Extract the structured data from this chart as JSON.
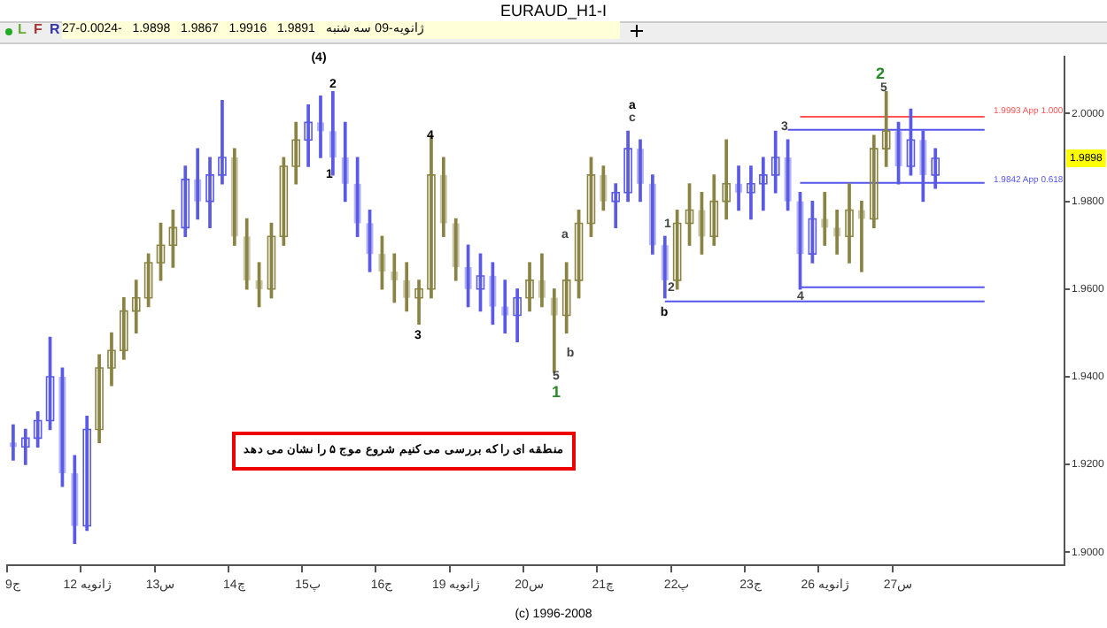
{
  "chart_data": {
    "type": "candlestick",
    "title": "EURAUD_H1-I",
    "subtitle": "27-ژانویه-09 سه شنبه   1.9891   1.9916   1.9867   1.9898   -0.0024",
    "categories": [
      "9ج",
      null,
      null,
      null,
      null,
      null,
      "12 ژانویه",
      null,
      null,
      null,
      null,
      null,
      "13س",
      null,
      null,
      null,
      null,
      null,
      "14چ",
      null,
      null,
      null,
      null,
      null,
      "15پ",
      null,
      null,
      null,
      null,
      null,
      "16ج",
      null,
      null,
      null,
      null,
      null,
      "19 ژانویه",
      null,
      null,
      null,
      null,
      null,
      "20س",
      null,
      null,
      null,
      null,
      null,
      "21چ",
      null,
      null,
      null,
      null,
      null,
      "22پ",
      null,
      null,
      null,
      null,
      null,
      "23ج",
      null,
      null,
      null,
      null,
      null,
      "26 ژانویه",
      null,
      null,
      null,
      null,
      null,
      "27س",
      null,
      null,
      null,
      null,
      null,
      null,
      null,
      null,
      null,
      null,
      null,
      null,
      null
    ],
    "series": [
      {
        "ohlc": [
          [
            1.925,
            1.929,
            1.921,
            1.924
          ],
          [
            1.924,
            1.928,
            1.92,
            1.926
          ],
          [
            1.926,
            1.932,
            1.924,
            1.93
          ],
          [
            1.93,
            1.949,
            1.928,
            1.94
          ],
          [
            1.94,
            1.942,
            1.915,
            1.918
          ],
          [
            1.918,
            1.922,
            1.902,
            1.906
          ],
          [
            1.906,
            1.931,
            1.905,
            1.928
          ],
          [
            1.928,
            1.945,
            1.925,
            1.942
          ],
          [
            1.942,
            1.95,
            1.938,
            1.946
          ],
          [
            1.946,
            1.958,
            1.944,
            1.955
          ],
          [
            1.955,
            1.962,
            1.95,
            1.958
          ],
          [
            1.958,
            1.968,
            1.956,
            1.966
          ],
          [
            1.966,
            1.975,
            1.962,
            1.97
          ],
          [
            1.97,
            1.978,
            1.965,
            1.974
          ],
          [
            1.974,
            1.988,
            1.972,
            1.985
          ],
          [
            1.985,
            1.992,
            1.976,
            1.98
          ],
          [
            1.98,
            1.99,
            1.974,
            1.986
          ],
          [
            1.986,
            2.003,
            1.984,
            1.99
          ],
          [
            1.99,
            1.992,
            1.97,
            1.972
          ],
          [
            1.972,
            1.976,
            1.96,
            1.962
          ],
          [
            1.962,
            1.966,
            1.956,
            1.96
          ],
          [
            1.96,
            1.975,
            1.958,
            1.972
          ],
          [
            1.972,
            1.99,
            1.97,
            1.988
          ],
          [
            1.988,
            1.998,
            1.984,
            1.994
          ],
          [
            1.994,
            2.002,
            1.988,
            1.998
          ],
          [
            1.998,
            2.004,
            1.99,
            1.996
          ],
          [
            1.996,
            2.005,
            1.986,
            1.99
          ],
          [
            1.99,
            1.998,
            1.98,
            1.984
          ],
          [
            1.984,
            1.99,
            1.972,
            1.975
          ],
          [
            1.975,
            1.978,
            1.964,
            1.968
          ],
          [
            1.968,
            1.972,
            1.96,
            1.964
          ],
          [
            1.964,
            1.968,
            1.957,
            1.962
          ],
          [
            1.962,
            1.966,
            1.955,
            1.958
          ],
          [
            1.958,
            1.962,
            1.952,
            1.96
          ],
          [
            1.96,
            1.995,
            1.958,
            1.986
          ],
          [
            1.986,
            1.99,
            1.972,
            1.975
          ],
          [
            1.975,
            1.976,
            1.962,
            1.965
          ],
          [
            1.965,
            1.97,
            1.956,
            1.96
          ],
          [
            1.96,
            1.968,
            1.955,
            1.963
          ],
          [
            1.963,
            1.966,
            1.952,
            1.956
          ],
          [
            1.956,
            1.962,
            1.95,
            1.954
          ],
          [
            1.954,
            1.96,
            1.948,
            1.958
          ],
          [
            1.958,
            1.966,
            1.955,
            1.962
          ],
          [
            1.962,
            1.968,
            1.956,
            1.958
          ],
          [
            1.958,
            1.96,
            1.941,
            1.954
          ],
          [
            1.954,
            1.966,
            1.95,
            1.962
          ],
          [
            1.962,
            1.978,
            1.958,
            1.975
          ],
          [
            1.975,
            1.99,
            1.972,
            1.986
          ],
          [
            1.986,
            1.988,
            1.978,
            1.98
          ],
          [
            1.98,
            1.984,
            1.974,
            1.982
          ],
          [
            1.982,
            1.996,
            1.98,
            1.992
          ],
          [
            1.992,
            1.994,
            1.98,
            1.984
          ],
          [
            1.984,
            1.986,
            1.968,
            1.97
          ],
          [
            1.97,
            1.972,
            1.958,
            1.962
          ],
          [
            1.962,
            1.978,
            1.96,
            1.975
          ],
          [
            1.975,
            1.984,
            1.97,
            1.978
          ],
          [
            1.978,
            1.982,
            1.968,
            1.972
          ],
          [
            1.972,
            1.986,
            1.97,
            1.98
          ],
          [
            1.98,
            1.994,
            1.976,
            1.984
          ],
          [
            1.984,
            1.988,
            1.978,
            1.982
          ],
          [
            1.982,
            1.988,
            1.976,
            1.984
          ],
          [
            1.984,
            1.99,
            1.978,
            1.986
          ],
          [
            1.986,
            1.996,
            1.982,
            1.99
          ],
          [
            1.99,
            1.994,
            1.978,
            1.98
          ],
          [
            1.98,
            1.982,
            1.96,
            1.968
          ],
          [
            1.968,
            1.98,
            1.966,
            1.976
          ],
          [
            1.976,
            1.982,
            1.97,
            1.974
          ],
          [
            1.974,
            1.978,
            1.968,
            1.972
          ],
          [
            1.972,
            1.984,
            1.966,
            1.978
          ],
          [
            1.978,
            1.98,
            1.964,
            1.976
          ],
          [
            1.976,
            1.995,
            1.974,
            1.992
          ],
          [
            1.992,
            2.005,
            1.988,
            1.996
          ],
          [
            1.996,
            1.998,
            1.984,
            1.988
          ],
          [
            1.988,
            2.001,
            1.986,
            1.994
          ],
          [
            1.994,
            1.996,
            1.98,
            1.986
          ],
          [
            1.986,
            1.992,
            1.983,
            1.9898
          ],
          null,
          null,
          null,
          null,
          null,
          null,
          null,
          null,
          null,
          null
        ],
        "colors": [
          "#5a5ae6",
          "#5a5ae6",
          "#5a5ae6",
          "#5a5ae6",
          "#5a5ae6",
          "#5a5ae6",
          "#5a5ae6",
          "#8a8444",
          "#8a8444",
          "#8a8444",
          "#8a8444",
          "#8a8444",
          "#8a8444",
          "#8a8444",
          "#5a5ae6",
          "#5a5ae6",
          "#5a5ae6",
          "#5a5ae6",
          "#8a8444",
          "#8a8444",
          "#8a8444",
          "#8a8444",
          "#8a8444",
          "#8a8444",
          "#5a5ae6",
          "#5a5ae6",
          "#5a5ae6",
          "#5a5ae6",
          "#5a5ae6",
          "#5a5ae6",
          "#8a8444",
          "#8a8444",
          "#8a8444",
          "#8a8444",
          "#8a8444",
          "#8a8444",
          "#8a8444",
          "#5a5ae6",
          "#5a5ae6",
          "#5a5ae6",
          "#5a5ae6",
          "#5a5ae6",
          "#8a8444",
          "#8a8444",
          "#8a8444",
          "#8a8444",
          "#8a8444",
          "#8a8444",
          "#8a8444",
          "#5a5ae6",
          "#5a5ae6",
          "#5a5ae6",
          "#5a5ae6",
          "#5a5ae6",
          "#8a8444",
          "#8a8444",
          "#8a8444",
          "#8a8444",
          "#8a8444",
          "#5a5ae6",
          "#5a5ae6",
          "#5a5ae6",
          "#5a5ae6",
          "#5a5ae6",
          "#5a5ae6",
          "#5a5ae6",
          "#8a8444",
          "#8a8444",
          "#8a8444",
          "#8a8444",
          "#8a8444",
          "#8a8444",
          "#5a5ae6",
          "#5a5ae6",
          "#5a5ae6",
          "#5a5ae6",
          null,
          null,
          null,
          null,
          null,
          null,
          null,
          null,
          null,
          null
        ]
      },
      {
        "type": "line",
        "color": "#ff5555",
        "values": [
          null,
          null,
          null,
          null,
          null,
          null,
          null,
          null,
          null,
          null,
          null,
          null,
          null,
          null,
          null,
          null,
          null,
          null,
          null,
          null,
          null,
          null,
          null,
          null,
          null,
          null,
          null,
          null,
          null,
          null,
          null,
          null,
          null,
          null,
          null,
          null,
          null,
          null,
          null,
          null,
          null,
          null,
          null,
          null,
          null,
          null,
          null,
          null,
          null,
          null,
          null,
          null,
          null,
          null,
          null,
          null,
          null,
          null,
          null,
          null,
          null,
          null,
          null,
          null,
          1.9993,
          1.9993,
          1.9993,
          1.9993,
          1.9993,
          1.9993,
          1.9993,
          1.9993,
          1.9993,
          1.9993,
          1.9993,
          1.9993,
          1.9993,
          1.9993,
          1.9993,
          1.9993,
          null,
          null,
          null,
          null,
          null,
          null
        ]
      },
      {
        "type": "line",
        "color": "#5555ee",
        "values": [
          null,
          null,
          null,
          null,
          null,
          null,
          null,
          null,
          null,
          null,
          null,
          null,
          null,
          null,
          null,
          null,
          null,
          null,
          null,
          null,
          null,
          null,
          null,
          null,
          null,
          null,
          null,
          null,
          null,
          null,
          null,
          null,
          null,
          null,
          null,
          null,
          null,
          null,
          null,
          null,
          null,
          null,
          null,
          null,
          null,
          null,
          null,
          null,
          null,
          null,
          null,
          null,
          null,
          null,
          null,
          null,
          null,
          null,
          null,
          null,
          null,
          null,
          null,
          1.9963,
          1.9963,
          1.9963,
          1.9963,
          1.9963,
          1.9963,
          1.9963,
          1.9963,
          1.9963,
          1.9963,
          1.9963,
          1.9963,
          1.9963,
          1.9963,
          1.9963,
          1.9963,
          1.9963,
          null,
          null,
          null,
          null,
          null,
          null
        ]
      },
      {
        "type": "line",
        "color": "#5555ee",
        "values": [
          null,
          null,
          null,
          null,
          null,
          null,
          null,
          null,
          null,
          null,
          null,
          null,
          null,
          null,
          null,
          null,
          null,
          null,
          null,
          null,
          null,
          null,
          null,
          null,
          null,
          null,
          null,
          null,
          null,
          null,
          null,
          null,
          null,
          null,
          null,
          null,
          null,
          null,
          null,
          null,
          null,
          null,
          null,
          null,
          null,
          null,
          null,
          null,
          null,
          null,
          null,
          null,
          null,
          null,
          null,
          null,
          null,
          null,
          null,
          null,
          null,
          null,
          null,
          null,
          1.9842,
          1.9842,
          1.9842,
          1.9842,
          1.9842,
          1.9842,
          1.9842,
          1.9842,
          1.9842,
          1.9842,
          1.9842,
          1.9842,
          1.9842,
          1.9842,
          1.9842,
          1.9842,
          null,
          null,
          null,
          null,
          null,
          null
        ]
      },
      {
        "type": "line",
        "color": "#5555ee",
        "values": [
          null,
          null,
          null,
          null,
          null,
          null,
          null,
          null,
          null,
          null,
          null,
          null,
          null,
          null,
          null,
          null,
          null,
          null,
          null,
          null,
          null,
          null,
          null,
          null,
          null,
          null,
          null,
          null,
          null,
          null,
          null,
          null,
          null,
          null,
          null,
          null,
          null,
          null,
          null,
          null,
          null,
          null,
          null,
          null,
          null,
          null,
          null,
          null,
          null,
          null,
          null,
          null,
          null,
          null,
          null,
          null,
          null,
          null,
          null,
          null,
          null,
          null,
          null,
          null,
          1.9604,
          1.9604,
          1.9604,
          1.9604,
          1.9604,
          1.9604,
          1.9604,
          1.9604,
          1.9604,
          1.9604,
          1.9604,
          1.9604,
          1.9604,
          1.9604,
          1.9604,
          1.9604,
          null,
          null,
          null,
          null,
          null,
          null
        ]
      },
      {
        "type": "line",
        "color": "#5555ee",
        "values": [
          null,
          null,
          null,
          null,
          null,
          null,
          null,
          null,
          null,
          null,
          null,
          null,
          null,
          null,
          null,
          null,
          null,
          null,
          null,
          null,
          null,
          null,
          null,
          null,
          null,
          null,
          null,
          null,
          null,
          null,
          null,
          null,
          null,
          null,
          null,
          null,
          null,
          null,
          null,
          null,
          null,
          null,
          null,
          null,
          null,
          null,
          null,
          null,
          null,
          null,
          null,
          null,
          null,
          1.9572,
          1.9572,
          1.9572,
          1.9572,
          1.9572,
          1.9572,
          1.9572,
          1.9572,
          1.9572,
          1.9572,
          1.9572,
          1.9572,
          1.9572,
          1.9572,
          1.9572,
          1.9572,
          1.9572,
          1.9572,
          1.9572,
          1.9572,
          1.9572,
          1.9572,
          1.9572,
          1.9572,
          1.9572,
          1.9572,
          1.9572,
          null,
          null,
          null,
          null,
          null,
          null
        ]
      }
    ],
    "ylim": [
      1.897,
      2.013
    ],
    "yticks": [
      {
        "value": 1.9,
        "label": "1.9000"
      },
      {
        "value": 1.92,
        "label": "1.9200"
      },
      {
        "value": 1.94,
        "label": "1.9400"
      },
      {
        "value": 1.96,
        "label": "1.9600"
      },
      {
        "value": 1.98,
        "label": "1.9800"
      },
      {
        "value": 2.0,
        "label": "2.0000"
      }
    ],
    "marker": "none",
    "annotations": [
      "L",
      "F",
      "R",
      "منطقه ای را که بررسی می کنیم شروع موج ۵ را نشان می دهد",
      "(c) 1996-2008",
      "(4)",
      "2",
      "1",
      "4",
      "3",
      "a",
      "5",
      "1",
      "b",
      "a",
      "c",
      "1",
      "2",
      "b",
      "3",
      "4",
      "5",
      "2",
      "1.9993 App 1.000",
      "1.9842 App 0.618",
      {
        "text": "1.9898",
        "y": 1.9898
      }
    ]
  }
}
